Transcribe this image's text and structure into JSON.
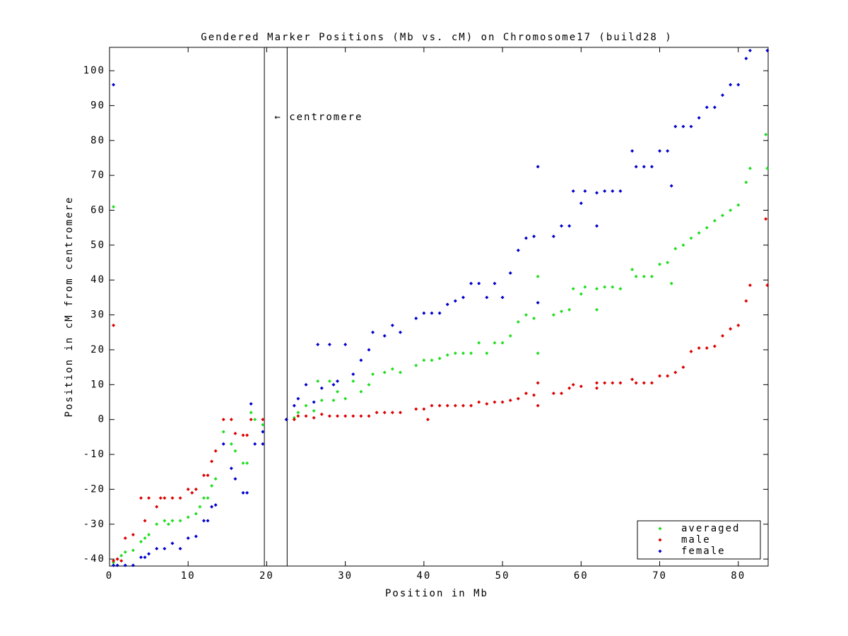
{
  "chart_data": {
    "type": "scatter",
    "title": "Gendered Marker Positions (Mb vs. cM) on Chromosome17 (build28 )",
    "x_label": "Position in Mb",
    "y_label": "Position in cM from centromere",
    "annotation": "← centromere",
    "centromere_lines": [
      19.7,
      22.6
    ],
    "xlim": [
      0,
      83.8
    ],
    "ylim": [
      -42,
      106.7
    ],
    "xticks": [
      0,
      10,
      20,
      30,
      40,
      50,
      60,
      70,
      80
    ],
    "yticks": [
      -40,
      -30,
      -20,
      -10,
      0,
      10,
      20,
      30,
      40,
      50,
      60,
      70,
      80,
      90,
      100
    ],
    "legend": "lower right",
    "series": [
      {
        "name": "averaged",
        "color": "#22dd22",
        "x": [
          0.5,
          0.5,
          1,
          1.5,
          2,
          3,
          4,
          4.5,
          5,
          6,
          7,
          7.5,
          8,
          9,
          10,
          11,
          11.5,
          12,
          12.5,
          13,
          13.5,
          14.5,
          15.5,
          16,
          17,
          17.5,
          18,
          18.5,
          19.5,
          22.5,
          23.5,
          24,
          25,
          26,
          26.5,
          27,
          28,
          28.5,
          29,
          30,
          31,
          32,
          33,
          33.5,
          35,
          36,
          37,
          39,
          40,
          41,
          42,
          43,
          44,
          45,
          46,
          47,
          48,
          49,
          50,
          51,
          52,
          53,
          54,
          54.5,
          54.5,
          56.5,
          57.5,
          58.5,
          59,
          60,
          60.5,
          62,
          62,
          63,
          64,
          65,
          66.5,
          67,
          68,
          69,
          70,
          71,
          71.5,
          72,
          73,
          74,
          75,
          76,
          77,
          78,
          79,
          80,
          81,
          81.5,
          83.5,
          83.7
        ],
        "values": [
          61,
          -41,
          -40,
          -39,
          -38,
          -37.5,
          -35,
          -34,
          -33,
          -30,
          -29,
          -30,
          -29,
          -29,
          -28,
          -27,
          -25,
          -22.5,
          -22.5,
          -19,
          -17,
          -3.5,
          -7,
          -9,
          -12.5,
          -12.5,
          2,
          0,
          -1.5,
          0,
          0.5,
          2,
          4,
          2.5,
          11,
          5.5,
          11,
          5.5,
          8,
          6,
          11,
          8,
          10,
          13,
          13.5,
          14.5,
          13.5,
          15.5,
          17,
          17,
          17.5,
          18.5,
          19,
          19,
          19,
          22,
          19,
          22,
          22,
          24,
          28,
          30,
          29,
          41,
          19,
          30,
          31,
          31.5,
          37.5,
          36,
          38,
          31.5,
          37.5,
          38,
          38,
          37.5,
          43,
          41,
          41,
          41,
          44.5,
          45,
          39,
          49,
          50,
          52,
          53.5,
          55,
          57,
          58.5,
          60,
          61.5,
          68,
          72,
          81.7,
          72
        ]
      },
      {
        "name": "male",
        "color": "#dd0000",
        "x": [
          0.5,
          0.5,
          1,
          1.5,
          2,
          3,
          4,
          4.5,
          5,
          6,
          6.5,
          7,
          8,
          9,
          10,
          10.5,
          11,
          12,
          12.5,
          13,
          13.5,
          14.5,
          15.5,
          16,
          17,
          17.5,
          18,
          19.5,
          22.5,
          23.5,
          24,
          25,
          26,
          27,
          28,
          29,
          30,
          31,
          32,
          33,
          34,
          35,
          36,
          37,
          39,
          40,
          40.5,
          41,
          42,
          43,
          44,
          45,
          46,
          47,
          48,
          49,
          50,
          51,
          52,
          53,
          54,
          54.5,
          54.5,
          56.5,
          57.5,
          58.5,
          59,
          60,
          62,
          62,
          63,
          64,
          65,
          66.5,
          67,
          68,
          69,
          70,
          71,
          72,
          73,
          74,
          75,
          76,
          77,
          78,
          79,
          80,
          81,
          81.5,
          83.5,
          83.7
        ],
        "values": [
          27,
          -40.5,
          -40,
          -40.5,
          -34,
          -33,
          -22.5,
          -29,
          -22.5,
          -25,
          -22.5,
          -22.5,
          -22.5,
          -22.5,
          -20,
          -21,
          -20,
          -16,
          -16,
          -12,
          -9,
          0,
          0,
          -4,
          -4.5,
          -4.5,
          0,
          0,
          0,
          0,
          1,
          1,
          0.5,
          1.5,
          1,
          1,
          1,
          1,
          1,
          1,
          2,
          2,
          2,
          2,
          3,
          3,
          0,
          4,
          4,
          4,
          4,
          4,
          4,
          5,
          4.5,
          5,
          5,
          5.5,
          6,
          7.5,
          7,
          10.5,
          4,
          7.5,
          7.5,
          9,
          10,
          9.5,
          9,
          10.5,
          10.5,
          10.5,
          10.5,
          11.5,
          10.5,
          10.5,
          10.5,
          12.5,
          12.5,
          13.5,
          15,
          19.5,
          20.5,
          20.5,
          21,
          24,
          26,
          27,
          34,
          38.5,
          57.5,
          38.5
        ]
      },
      {
        "name": "female",
        "color": "#0000cc",
        "x": [
          0.5,
          0.5,
          1,
          2,
          3,
          4,
          4.5,
          5,
          6,
          7,
          8,
          9,
          10,
          11,
          12,
          12.5,
          13,
          13.5,
          14.5,
          15.5,
          16,
          17,
          17.5,
          18,
          18.5,
          19.5,
          19.5,
          22.5,
          23.5,
          24,
          25,
          26,
          26.5,
          27,
          28,
          28.5,
          29,
          30,
          31,
          32,
          33,
          33.5,
          35,
          36,
          37,
          39,
          40,
          41,
          42,
          43,
          44,
          45,
          46,
          47,
          48,
          49,
          50,
          51,
          52,
          53,
          54,
          54.5,
          54.5,
          56.5,
          57.5,
          58.5,
          59,
          60,
          60.5,
          62,
          62,
          63,
          64,
          65,
          66.5,
          67,
          68,
          69,
          70,
          71,
          71.5,
          72,
          73,
          74,
          75,
          76,
          77,
          78,
          79,
          80,
          81,
          81.5,
          83.7
        ],
        "values": [
          96,
          -41.8,
          -41.8,
          -41.8,
          -41.8,
          -39.5,
          -39.5,
          -38.5,
          -37,
          -37,
          -35.5,
          -37,
          -34,
          -33.5,
          -29,
          -29,
          -25,
          -24.5,
          -7,
          -14,
          -17,
          -21,
          -21,
          4.5,
          -7,
          -3.5,
          -7,
          0,
          4,
          6,
          10,
          5,
          21.5,
          9,
          21.5,
          10,
          11,
          21.5,
          13,
          17,
          20,
          25,
          24,
          27,
          25,
          29,
          30.5,
          30.5,
          30.5,
          33,
          34,
          35,
          39,
          39,
          35,
          39,
          35,
          42,
          48.5,
          52,
          52.5,
          72.5,
          33.5,
          52.5,
          55.5,
          55.5,
          65.5,
          62,
          65.5,
          55.5,
          65,
          65.5,
          65.5,
          65.5,
          77,
          72.5,
          72.5,
          72.5,
          77,
          77,
          67,
          84,
          84,
          84,
          86.5,
          89.5,
          89.5,
          93,
          96,
          96,
          103.5,
          105.8,
          105.8
        ]
      }
    ]
  }
}
